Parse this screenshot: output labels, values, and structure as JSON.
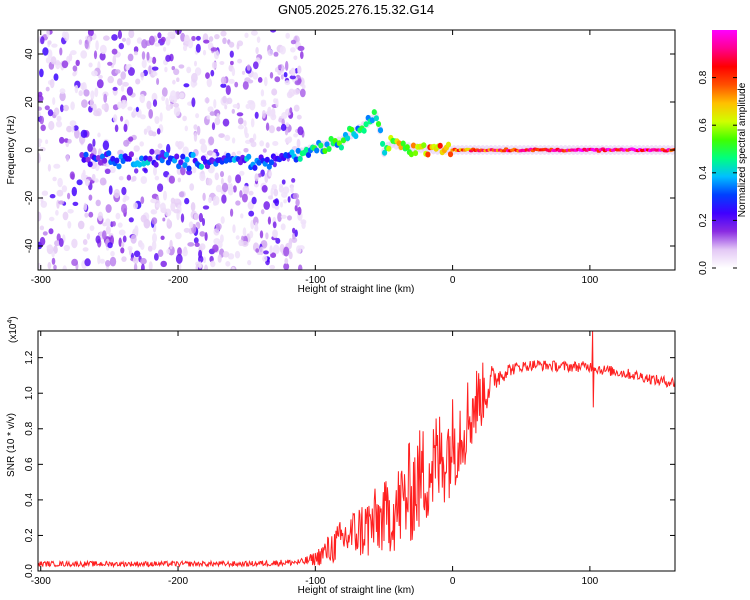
{
  "title": "GN05.2025.276.15.32.G14",
  "chart_data": [
    {
      "type": "heatmap",
      "name": "spectrogram",
      "xlabel": "Height of straight line (km)",
      "ylabel": "Frequency (Hz)",
      "xlim": [
        -302,
        162
      ],
      "ylim": [
        -50,
        50
      ],
      "xticks": [
        -300,
        -200,
        -100,
        0,
        100
      ],
      "xtick_labels": [
        "-300",
        "-200",
        "-100",
        "0",
        "100"
      ],
      "yticks": [
        -40,
        -20,
        0,
        20,
        40
      ],
      "ytick_labels": [
        "-40",
        "-20",
        "0",
        "20",
        "40"
      ],
      "colorbar": {
        "label": "Normalized spectral amplitude",
        "range": [
          0,
          1
        ],
        "ticks": [
          0.0,
          0.2,
          0.4,
          0.6,
          0.8
        ],
        "tick_labels": [
          "0.0",
          "0.2",
          "0.4",
          "0.6",
          "0.8"
        ],
        "colors": [
          "#ffffff",
          "#e3c8f5",
          "#8a2be2",
          "#3f00ff",
          "#0040ff",
          "#00c0ff",
          "#00ff80",
          "#40ff00",
          "#d0ff00",
          "#ffc000",
          "#ff5000",
          "#ff0000",
          "#ff0090",
          "#ff00ff"
        ]
      },
      "ridge": {
        "x": [
          -270,
          -220,
          -180,
          -140,
          -120,
          -100,
          -80,
          -70,
          -60,
          -55,
          -50,
          -45,
          -40,
          -30,
          -20,
          -10,
          0,
          20,
          50,
          100,
          150,
          162
        ],
        "y": [
          -4,
          -4,
          -5,
          -5,
          -3,
          1,
          4,
          8,
          12,
          15,
          -1,
          3,
          2,
          1,
          0.5,
          0,
          0,
          0,
          0,
          0,
          0,
          0
        ],
        "amplitude": [
          0.2,
          0.3,
          0.3,
          0.3,
          0.3,
          0.4,
          0.45,
          0.45,
          0.4,
          0.5,
          0.4,
          0.55,
          0.6,
          0.6,
          0.7,
          0.7,
          0.75,
          0.8,
          0.85,
          0.9,
          0.9,
          0.85
        ]
      }
    },
    {
      "type": "line",
      "name": "snr",
      "xlabel": "Height of straight line (km)",
      "ylabel": "SNR (10 * v/v)",
      "y_multiplier": "(x10",
      "y_multiplier_exp": "4",
      "y_multiplier_close": ")",
      "xlim": [
        -302,
        162
      ],
      "ylim": [
        0,
        1.35
      ],
      "xticks": [
        -300,
        -200,
        -100,
        0,
        100
      ],
      "xtick_labels": [
        "-300",
        "-200",
        "-100",
        "0",
        "100"
      ],
      "yticks": [
        0.0,
        0.2,
        0.4,
        0.6,
        0.8,
        1.0,
        1.2
      ],
      "ytick_labels": [
        "0.0",
        "0.2",
        "0.4",
        "0.6",
        "0.8",
        "1.0",
        "1.2"
      ],
      "series": [
        {
          "name": "SNR",
          "color": "#ff2020",
          "x": [
            -302,
            -250,
            -200,
            -150,
            -110,
            -100,
            -90,
            -80,
            -70,
            -60,
            -50,
            -40,
            -30,
            -20,
            -10,
            0,
            10,
            20,
            30,
            40,
            50,
            60,
            80,
            100,
            110,
            120,
            140,
            150,
            162
          ],
          "y": [
            0.04,
            0.04,
            0.04,
            0.04,
            0.05,
            0.07,
            0.12,
            0.18,
            0.22,
            0.25,
            0.3,
            0.35,
            0.45,
            0.55,
            0.62,
            0.72,
            0.85,
            0.98,
            1.08,
            1.13,
            1.15,
            1.16,
            1.15,
            1.15,
            1.13,
            1.12,
            1.09,
            1.07,
            1.06
          ],
          "noise": [
            0.015,
            0.015,
            0.015,
            0.015,
            0.02,
            0.04,
            0.09,
            0.12,
            0.15,
            0.2,
            0.2,
            0.25,
            0.3,
            0.3,
            0.3,
            0.28,
            0.25,
            0.2,
            0.08,
            0.04,
            0.03,
            0.03,
            0.03,
            0.03,
            0.03,
            0.03,
            0.03,
            0.03,
            0.03
          ],
          "spike": {
            "x": 102,
            "y_max": 1.35,
            "y_min": 0.92
          }
        }
      ]
    }
  ]
}
